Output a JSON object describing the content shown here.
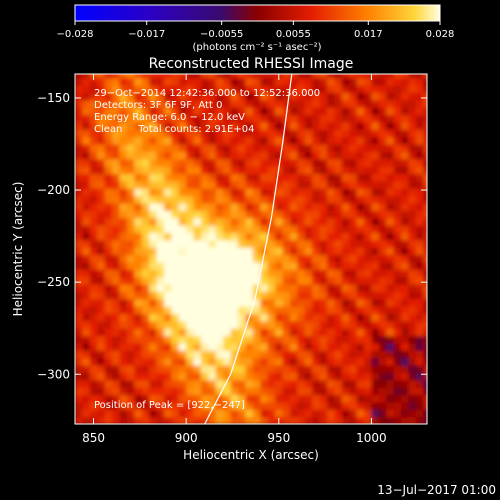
{
  "chart_data": {
    "type": "heatmap",
    "title": "Reconstructed RHESSI Image",
    "xlabel": "Heliocentric X (arcsec)",
    "ylabel": "Heliocentric Y (arcsec)",
    "xlim": [
      840,
      1030
    ],
    "ylim": [
      -327,
      -137
    ],
    "x_ticks": [
      850,
      900,
      950,
      1000
    ],
    "y_ticks": [
      -150,
      -200,
      -250,
      -300
    ],
    "x_tick_labels": [
      "850",
      "900",
      "950",
      "1000"
    ],
    "y_tick_labels": [
      "−150",
      "−200",
      "−250",
      "−300"
    ],
    "colorbar": {
      "min": -0.028,
      "max": 0.028,
      "ticks": [
        -0.028,
        -0.017,
        -0.0055,
        0.0055,
        0.017,
        0.028
      ],
      "tick_labels": [
        "−0.028",
        "−0.017",
        "−0.0055",
        "0.0055",
        "0.017",
        "0.028"
      ],
      "units": "(photons cm⁻² s⁻¹ asec⁻²)"
    },
    "peak": {
      "x": 922,
      "y": -247,
      "value": 0.028
    },
    "limb_curve": [
      [
        910,
        -327
      ],
      [
        924,
        -300
      ],
      [
        937,
        -260
      ],
      [
        946,
        -215
      ],
      [
        952,
        -175
      ],
      [
        957,
        -137
      ]
    ],
    "info_lines": [
      "29−Oct−2014 12:42:36.000 to 12:52:36.000",
      "Detectors: 3F 6F 9F, Att 0",
      "Energy Range: 6.0 − 12.0 keV",
      "Clean     Total counts: 2.91E+04"
    ],
    "peak_label": "Position of Peak = [922,−247]",
    "footer_date": "13−Jul−2017 01:00"
  }
}
